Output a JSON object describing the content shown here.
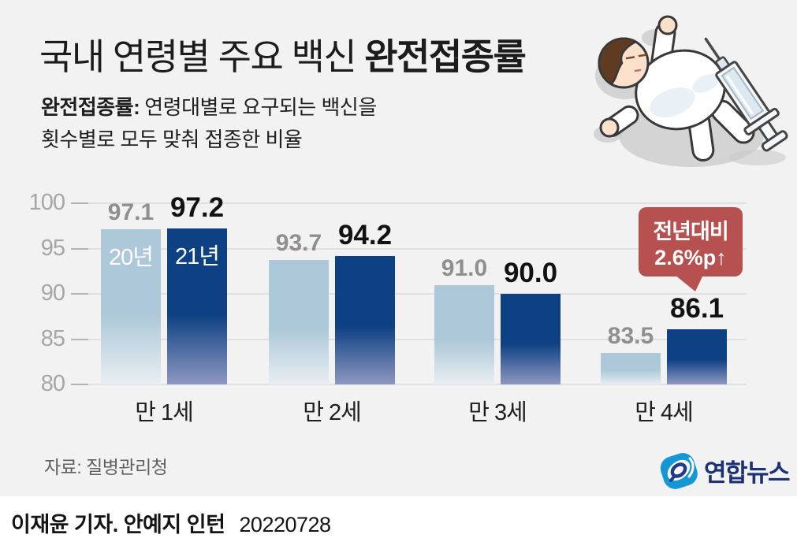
{
  "header": {
    "title_regular": "국내 연령별 주요 백신",
    "title_bold": "완전접종률",
    "definition_term": "완전접종률:",
    "definition_line1": "연령대별로 요구되는 백신을",
    "definition_line2": "횟수별로 모두 맞춰 접종한 비율"
  },
  "chart_data": {
    "type": "bar",
    "title": "국내 연령별 주요 백신 완전접종률",
    "categories": [
      "만 1세",
      "만 2세",
      "만 3세",
      "만 4세"
    ],
    "series": [
      {
        "name": "20년",
        "values": [
          97.1,
          93.7,
          91.0,
          83.5
        ]
      },
      {
        "name": "21년",
        "values": [
          97.2,
          94.2,
          90.0,
          86.1
        ]
      }
    ],
    "ylim": [
      80,
      100
    ],
    "yticks": [
      100,
      95,
      90,
      85,
      80
    ],
    "unit": "%",
    "grid": true,
    "legend_position": "inside-first-group-bars",
    "annotation": {
      "target_category": "만 4세",
      "target_series": "21년",
      "line1": "전년대비",
      "line2": "2.6%p↑"
    }
  },
  "callout": {
    "line1": "전년대비",
    "line2": "2.6%p↑"
  },
  "colors": {
    "background": "#f2f2f2",
    "bar_2020": "#adc8d8",
    "bar_2021": "#0e4183",
    "bar_2021_fade": "#8e97c1",
    "value_label_2020": "#8f8f8f",
    "value_label_2021": "#121212",
    "callout_bg": "#b65150",
    "logo_blue": "#1697d5",
    "logo_navy": "#1c3176"
  },
  "footer": {
    "source": "자료: 질병관리청",
    "logo_text": "연합뉴스",
    "byline": "이재윤 기자. 안예지 인턴",
    "date": "20220728"
  }
}
